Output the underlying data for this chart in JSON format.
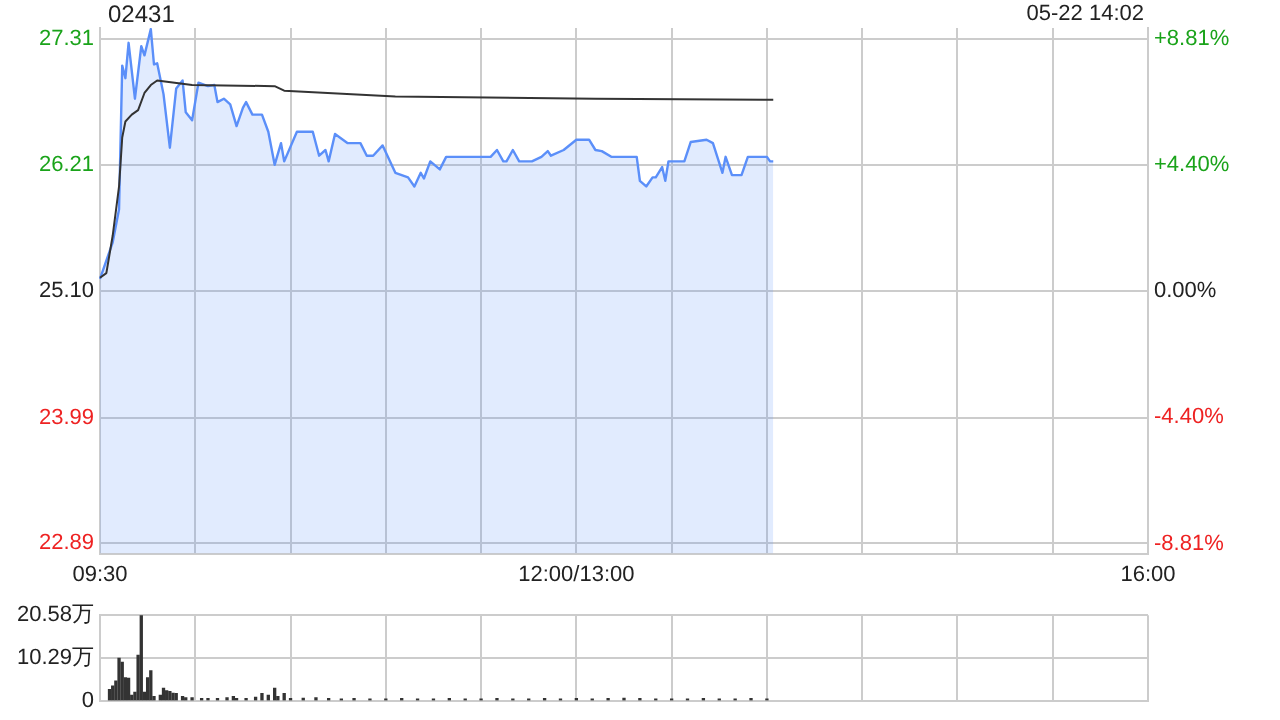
{
  "chart_data": [
    {
      "type": "line",
      "title": "02431",
      "annotations": [
        "05-22 14:02"
      ],
      "grid": true,
      "categories": [
        "09:30",
        null,
        null,
        null,
        null,
        null,
        null,
        null,
        null,
        null,
        null,
        null,
        null,
        null,
        null,
        null,
        null,
        null,
        null,
        null,
        null,
        null,
        null,
        null,
        null,
        null,
        null,
        null,
        null,
        null,
        null,
        null,
        null,
        null,
        null,
        null,
        null,
        null,
        null,
        null,
        null,
        null,
        null,
        null,
        null,
        null,
        null,
        null,
        null,
        null,
        null,
        null,
        null,
        null,
        null,
        null,
        null,
        null,
        null,
        null,
        null,
        null,
        null,
        null,
        null,
        null,
        null,
        null,
        null,
        null,
        null,
        null,
        null,
        null,
        null,
        null,
        null,
        null,
        null,
        null,
        null,
        null,
        null,
        null,
        null,
        null,
        null,
        null,
        null,
        null,
        null,
        null,
        null,
        null,
        null,
        null,
        null,
        null,
        null,
        null,
        null,
        null,
        null,
        null,
        null,
        null,
        null,
        null,
        null,
        null,
        null,
        null,
        null,
        null,
        null,
        null,
        null,
        null,
        null,
        null,
        null,
        null,
        null,
        null,
        null,
        null,
        null,
        null,
        null,
        null,
        null,
        null,
        null,
        null,
        null,
        null,
        null,
        null,
        null,
        null,
        null,
        null,
        null,
        null,
        null,
        null,
        null,
        null,
        null,
        null,
        "12:00/13:00",
        null,
        null,
        null,
        null,
        null,
        null,
        null,
        null,
        null,
        null,
        null,
        null,
        null,
        null,
        null,
        null,
        null,
        null,
        null,
        null,
        null,
        null,
        null,
        null,
        null,
        null,
        null,
        null,
        null,
        null,
        null,
        null,
        null,
        null,
        null,
        null,
        null,
        null,
        null,
        null,
        null,
        null,
        null,
        null,
        null,
        null,
        null,
        null,
        null,
        null,
        null,
        null,
        null,
        null,
        null,
        null,
        null,
        null,
        null,
        null,
        null,
        null,
        null,
        null,
        null,
        null,
        null,
        null,
        null,
        null,
        null,
        null,
        null,
        null,
        null,
        null,
        null,
        null,
        null,
        null,
        null,
        null,
        null,
        null,
        null,
        null,
        null,
        null,
        null,
        null,
        null,
        null,
        null,
        null,
        null,
        null,
        null,
        null,
        null,
        null,
        null,
        null,
        null,
        null,
        null,
        null,
        null,
        null,
        null,
        null,
        null,
        null,
        null,
        null,
        null,
        null,
        null,
        null,
        null,
        null,
        null,
        null,
        null,
        null,
        null,
        null,
        null,
        null,
        null,
        null,
        null,
        null,
        null,
        null,
        null,
        null,
        null,
        null,
        null,
        null,
        null,
        null,
        null,
        null,
        null,
        null,
        null,
        null,
        null,
        null,
        null,
        null,
        null,
        null,
        null,
        null,
        null,
        null,
        null,
        null,
        null,
        null,
        null,
        null,
        null,
        null,
        null,
        null,
        null,
        null,
        null,
        null,
        null,
        null,
        null,
        null,
        null,
        null,
        null,
        "16:00"
      ],
      "ylim": [
        22.8,
        27.41
      ],
      "yticks": [
        {
          "value": 22.89,
          "label": "22.89"
        },
        {
          "value": 23.99,
          "label": "23.99"
        },
        {
          "value": 25.1,
          "label": "25.10"
        },
        {
          "value": 26.21,
          "label": "26.21"
        },
        {
          "value": 27.31,
          "label": "27.31"
        }
      ],
      "y2lim": [
        -9.16,
        9.2
      ],
      "y2ticks": [
        {
          "value": -8.81,
          "label": "-8.81%"
        },
        {
          "value": -4.4,
          "label": "-4.40%"
        },
        {
          "value": 0,
          "label": "0.00%"
        },
        {
          "value": 4.4,
          "label": "+4.40%"
        },
        {
          "value": 8.81,
          "label": "+8.81%"
        }
      ],
      "series": [
        {
          "type": "area",
          "color": "#5b8ff9",
          "values": [
            25.21,
            null,
            null,
            null,
            25.53,
            null,
            25.82,
            27.08,
            26.97,
            27.28,
            null,
            26.79,
            null,
            27.25,
            27.17,
            null,
            27.4,
            27.09,
            27.1,
            null,
            26.83,
            null,
            26.36,
            null,
            26.88,
            null,
            26.95,
            26.67,
            null,
            26.6,
            null,
            26.93,
            null,
            null,
            26.9,
            null,
            26.91,
            26.76,
            null,
            26.79,
            null,
            26.74,
            null,
            26.55,
            null,
            26.71,
            26.76,
            null,
            26.65,
            null,
            null,
            26.65,
            null,
            26.5,
            null,
            26.21,
            null,
            26.4,
            26.24,
            null,
            null,
            null,
            26.5,
            null,
            null,
            null,
            null,
            26.5,
            null,
            26.29,
            null,
            26.34,
            26.24,
            null,
            26.48,
            null,
            null,
            null,
            26.4,
            null,
            null,
            null,
            26.4,
            null,
            26.29,
            null,
            26.29,
            null,
            null,
            26.38,
            null,
            null,
            null,
            26.14,
            null,
            null,
            null,
            26.1,
            null,
            26.02,
            null,
            26.14,
            26.09,
            null,
            26.24,
            null,
            null,
            26.17,
            null,
            26.28,
            null,
            null,
            null,
            null,
            null,
            null,
            null,
            null,
            null,
            null,
            null,
            null,
            null,
            26.28,
            null,
            26.34,
            null,
            26.24,
            26.24,
            null,
            26.34,
            null,
            26.24,
            null,
            null,
            null,
            26.24,
            null,
            null,
            26.28,
            null,
            26.33,
            26.29,
            null,
            null,
            null,
            26.34,
            null,
            null,
            null,
            26.43,
            null,
            null,
            null,
            26.43,
            null,
            26.34,
            null,
            26.33,
            null,
            null,
            26.28,
            null,
            null,
            26.28,
            null,
            null,
            null,
            null,
            26.28,
            26.07,
            null,
            26.02,
            null,
            26.1,
            26.1,
            null,
            26.19,
            26.07,
            26.24,
            null,
            null,
            null,
            null,
            26.24,
            null,
            26.41,
            null,
            null,
            null,
            null,
            26.43,
            null,
            26.4,
            null,
            null,
            26.14,
            26.28,
            null,
            26.12,
            null,
            null,
            26.12,
            null,
            26.28,
            null,
            null,
            null,
            null,
            null,
            26.28,
            26.24,
            26.24,
            null,
            null,
            null,
            null,
            null,
            null,
            null,
            null,
            null,
            null,
            null,
            null,
            null,
            null,
            null,
            null,
            null,
            null,
            null,
            null,
            null,
            null,
            null,
            null,
            null,
            null,
            null,
            null,
            null,
            null,
            null,
            null,
            null,
            null,
            null,
            null,
            null,
            null,
            null,
            null,
            null,
            null,
            null,
            null,
            null,
            null,
            null,
            null,
            null,
            null,
            null,
            null,
            null,
            null,
            null,
            null,
            null,
            null,
            null,
            null,
            null,
            null,
            null,
            null,
            null,
            null,
            null,
            null,
            null,
            null,
            null,
            null,
            null,
            null,
            null,
            null,
            null,
            null,
            null,
            null,
            null,
            null,
            null,
            null,
            null,
            null,
            null,
            null,
            null,
            null,
            null,
            null,
            null,
            null,
            null,
            null,
            null,
            null,
            null,
            null,
            null,
            null,
            null,
            null,
            null,
            null,
            null,
            null,
            null,
            null,
            null,
            null,
            null,
            null,
            null,
            null,
            null,
            null
          ]
        },
        {
          "type": "line",
          "color": "#333333",
          "values": [
            25.22,
            null,
            25.26,
            null,
            25.59,
            null,
            26.02,
            26.45,
            26.59,
            null,
            26.65,
            null,
            26.69,
            null,
            26.84,
            null,
            26.91,
            null,
            26.95,
            null,
            null,
            null,
            null,
            null,
            null,
            null,
            null,
            null,
            null,
            26.91,
            null,
            null,
            null,
            null,
            null,
            null,
            null,
            null,
            null,
            null,
            null,
            null,
            null,
            null,
            null,
            null,
            null,
            null,
            null,
            null,
            null,
            null,
            null,
            null,
            null,
            26.9,
            null,
            null,
            26.86,
            null,
            null,
            null,
            null,
            null,
            null,
            null,
            null,
            null,
            null,
            null,
            null,
            null,
            null,
            null,
            null,
            null,
            null,
            null,
            null,
            null,
            null,
            null,
            null,
            null,
            null,
            null,
            null,
            null,
            null,
            null,
            null,
            null,
            null,
            26.81,
            null,
            null,
            null,
            null,
            null,
            null,
            null,
            null,
            null,
            null,
            null,
            null,
            null,
            null,
            null,
            null,
            null,
            null,
            null,
            null,
            null,
            null,
            null,
            null,
            null,
            null,
            null,
            null,
            null,
            null,
            null,
            null,
            null,
            null,
            null,
            null,
            null,
            null,
            null,
            null,
            null,
            null,
            null,
            null,
            null,
            null,
            null,
            null,
            null,
            null,
            null,
            null,
            null,
            null,
            null,
            null,
            null,
            null,
            null,
            null,
            null,
            null,
            26.79,
            null,
            null,
            null,
            null,
            null,
            null,
            null,
            null,
            null,
            null,
            null,
            null,
            null,
            null,
            null,
            null,
            null,
            null,
            null,
            null,
            null,
            null,
            null,
            null,
            null,
            null,
            null,
            null,
            null,
            null,
            null,
            null,
            null,
            null,
            null,
            null,
            null,
            null,
            null,
            null,
            null,
            null,
            null,
            null,
            null,
            null,
            null,
            null,
            null,
            null,
            null,
            null,
            null,
            null,
            null,
            26.78,
            null,
            null,
            null,
            null,
            null,
            null,
            null,
            null,
            null,
            null,
            null,
            null,
            null,
            null,
            null,
            null,
            null,
            null,
            null,
            null,
            null,
            null,
            null,
            null,
            null,
            null,
            null,
            null,
            null,
            null,
            null,
            null,
            null,
            null,
            null,
            null,
            null,
            null,
            null,
            null,
            null,
            null,
            null,
            null,
            null,
            null,
            null,
            null,
            null,
            null,
            null,
            null,
            null,
            null,
            null,
            null,
            null,
            null,
            null,
            null,
            null,
            null,
            null,
            null,
            null,
            null,
            null,
            null,
            null,
            null,
            null,
            null,
            null,
            null,
            null,
            null,
            null,
            null,
            null,
            null,
            null,
            null,
            null,
            null,
            null,
            null,
            null,
            null,
            null,
            null,
            null,
            null,
            null,
            null,
            null,
            null,
            null,
            null,
            null,
            null,
            null,
            null,
            null,
            null,
            null,
            null,
            null,
            null,
            null,
            null,
            null,
            null,
            null,
            null,
            null,
            null,
            null,
            null
          ]
        }
      ]
    },
    {
      "type": "bar",
      "color": "#333333",
      "grid": true,
      "categories": [
        null,
        null,
        null,
        null,
        null,
        null,
        null,
        null,
        null,
        null,
        null,
        null,
        null,
        null,
        null,
        null,
        null,
        null,
        null,
        null,
        null,
        null,
        null,
        null,
        null,
        null,
        null,
        null,
        null,
        null,
        null,
        null,
        null,
        null,
        null,
        null,
        null,
        null,
        null,
        null,
        null,
        null,
        null,
        null,
        null,
        null,
        null,
        null,
        null,
        null,
        null,
        null,
        null,
        null,
        null,
        null,
        null,
        null,
        null,
        null,
        null,
        null,
        null,
        null,
        null,
        null,
        null,
        null,
        null,
        null,
        null,
        null,
        null,
        null,
        null,
        null,
        null,
        null,
        null,
        null,
        null,
        null,
        null,
        null,
        null,
        null,
        null,
        null,
        null,
        null,
        null,
        null,
        null,
        null,
        null,
        null,
        null,
        null,
        null,
        null,
        null,
        null,
        null,
        null,
        null,
        null,
        null,
        null,
        null,
        null,
        null,
        null,
        null,
        null,
        null,
        null,
        null,
        null,
        null,
        null,
        null,
        null,
        null,
        null,
        null,
        null,
        null,
        null,
        null,
        null,
        null,
        null,
        null,
        null,
        null,
        null,
        null,
        null,
        null,
        null,
        null,
        null,
        null,
        null,
        null,
        null,
        null,
        null,
        null,
        null,
        null,
        null,
        null,
        null,
        null,
        null,
        null,
        null,
        null,
        null,
        null,
        null,
        null,
        null,
        null,
        null,
        null,
        null,
        null,
        null,
        null,
        null,
        null,
        null,
        null,
        null,
        null,
        null,
        null,
        null,
        null,
        null,
        null,
        null,
        null,
        null,
        null,
        null,
        null,
        null,
        null,
        null,
        null,
        null,
        null,
        null,
        null,
        null,
        null,
        null,
        null,
        null,
        null,
        null,
        null,
        null,
        null,
        null,
        null,
        null,
        null,
        null,
        null,
        null,
        null,
        null,
        null,
        null,
        null,
        null,
        null,
        null,
        null,
        null,
        null,
        null,
        null,
        null,
        null,
        null,
        null,
        null,
        null,
        null,
        null,
        null,
        null,
        null,
        null,
        null,
        null,
        null,
        null,
        null,
        null,
        null,
        null,
        null,
        null,
        null,
        null,
        null,
        null,
        null,
        null,
        null,
        null,
        null,
        null,
        null,
        null,
        null,
        null,
        null,
        null,
        null,
        null,
        null,
        null,
        null,
        null,
        null,
        null,
        null,
        null,
        null,
        null,
        null,
        null,
        null,
        null,
        null,
        null,
        null,
        null,
        null,
        null,
        null,
        null,
        null,
        null,
        null,
        null,
        null,
        null,
        null,
        null,
        null,
        null,
        null,
        null,
        null,
        null,
        null,
        null,
        null,
        null,
        null,
        null,
        null,
        null,
        null,
        null,
        null,
        null,
        null,
        null,
        null,
        null,
        null,
        null,
        null,
        null,
        null,
        null,
        null,
        null,
        null,
        null,
        null,
        null
      ],
      "ylim": [
        0,
        20.58
      ],
      "yticks": [
        {
          "value": 0,
          "label": "0"
        },
        {
          "value": 10.29,
          "label": "10.29万"
        },
        {
          "value": 20.58,
          "label": "20.58万"
        }
      ],
      "values": [
        null,
        null,
        null,
        2.7,
        3.5,
        4.7,
        10.2,
        9.2,
        5.5,
        5.4,
        1.3,
        2.0,
        10.9,
        20.5,
        2.0,
        5.5,
        7.2,
        1.0,
        null,
        1.3,
        3.0,
        2.4,
        2.2,
        1.8,
        1.7,
        null,
        1.0,
        0.7,
        null,
        0.7,
        null,
        null,
        0.5,
        null,
        0.5,
        null,
        null,
        0.5,
        null,
        null,
        0.7,
        null,
        1.0,
        0.5,
        null,
        null,
        0.5,
        null,
        null,
        0.8,
        null,
        1.7,
        null,
        1.3,
        null,
        3.0,
        1.0,
        null,
        1.7,
        null,
        0.5,
        null,
        null,
        null,
        0.6,
        null,
        null,
        null,
        0.7,
        null,
        null,
        null,
        0.5,
        null,
        null,
        null,
        0.4,
        null,
        null,
        null,
        0.5,
        null,
        null,
        null,
        null,
        0.4,
        null,
        null,
        null,
        null,
        0.4,
        null,
        null,
        null,
        null,
        0.5,
        null,
        null,
        null,
        null,
        0.4,
        null,
        null,
        null,
        null,
        0.4,
        null,
        null,
        null,
        null,
        0.5,
        null,
        null,
        null,
        null,
        0.4,
        null,
        null,
        null,
        null,
        0.4,
        null,
        null,
        null,
        null,
        0.5,
        null,
        null,
        null,
        null,
        0.4,
        null,
        null,
        null,
        null,
        0.4,
        null,
        null,
        null,
        null,
        0.5,
        null,
        null,
        null,
        null,
        0.4,
        null,
        null,
        null,
        null,
        0.5,
        null,
        null,
        null,
        null,
        0.4,
        null,
        null,
        null,
        null,
        0.5,
        null,
        null,
        null,
        null,
        0.6,
        null,
        null,
        null,
        null,
        0.5,
        null,
        null,
        null,
        null,
        0.4,
        null,
        null,
        null,
        null,
        0.4,
        null,
        null,
        null,
        null,
        0.4,
        null,
        null,
        null,
        null,
        0.5,
        null,
        null,
        null,
        null,
        0.4,
        null,
        null,
        null,
        null,
        0.4,
        null,
        null,
        null,
        null,
        0.5,
        null,
        null,
        null,
        null,
        0.4,
        null,
        null,
        null,
        null,
        null,
        null,
        null,
        null,
        null,
        null,
        null,
        null,
        null,
        null,
        null,
        null,
        null,
        null,
        null,
        null,
        null,
        null,
        null,
        null,
        null,
        null,
        null,
        null,
        null,
        null,
        null,
        null,
        null,
        null,
        null,
        null,
        null,
        null,
        null,
        null,
        null,
        null,
        null,
        null,
        null,
        null,
        null,
        null,
        null,
        null,
        null,
        null,
        null,
        null,
        null,
        null,
        null,
        null,
        null,
        null,
        null,
        null,
        null,
        null,
        null,
        null,
        null,
        null,
        null,
        null,
        null,
        null,
        null,
        null,
        null,
        null,
        null,
        null,
        null,
        null,
        null,
        null,
        null,
        null,
        null,
        null,
        null,
        null,
        null,
        null,
        null,
        null,
        null,
        null,
        null,
        null,
        null,
        null,
        null,
        null,
        null,
        null,
        null,
        null,
        null,
        null,
        null,
        null,
        null,
        null,
        null,
        null,
        null,
        null,
        null,
        null,
        null,
        null,
        null,
        null
      ]
    }
  ]
}
